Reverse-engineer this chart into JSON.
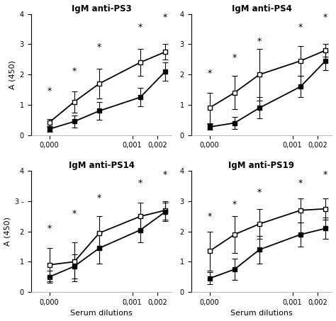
{
  "titles": [
    "IgM anti-PS3",
    "IgM anti-PS4",
    "IgM anti-PS14",
    "IgM anti-PS19"
  ],
  "x_values": [
    0.0001,
    0.0002,
    0.0004,
    0.00125,
    0.0025
  ],
  "open_square": {
    "PS3": [
      0.42,
      1.1,
      1.7,
      2.4,
      2.75
    ],
    "PS4": [
      0.9,
      1.4,
      2.0,
      2.45,
      2.8
    ],
    "PS14": [
      0.9,
      1.0,
      1.95,
      2.5,
      2.7
    ],
    "PS19": [
      1.35,
      1.9,
      2.25,
      2.7,
      2.75
    ]
  },
  "open_square_err": {
    "PS3": [
      0.12,
      0.35,
      0.5,
      0.45,
      0.25
    ],
    "PS4": [
      0.5,
      0.55,
      0.85,
      0.5,
      0.2
    ],
    "PS14": [
      0.55,
      0.65,
      0.55,
      0.45,
      0.3
    ],
    "PS19": [
      0.65,
      0.6,
      0.5,
      0.4,
      0.35
    ]
  },
  "filled_square": {
    "PS3": [
      0.2,
      0.45,
      0.8,
      1.25,
      2.1
    ],
    "PS4": [
      0.27,
      0.4,
      0.9,
      1.6,
      2.45
    ],
    "PS14": [
      0.5,
      0.85,
      1.45,
      2.05,
      2.65
    ],
    "PS19": [
      0.45,
      0.75,
      1.4,
      1.9,
      2.1
    ]
  },
  "filled_square_err": {
    "PS3": [
      0.08,
      0.2,
      0.3,
      0.3,
      0.3
    ],
    "PS4": [
      0.1,
      0.2,
      0.35,
      0.35,
      0.3
    ],
    "PS14": [
      0.2,
      0.4,
      0.5,
      0.4,
      0.3
    ],
    "PS19": [
      0.2,
      0.35,
      0.45,
      0.4,
      0.35
    ]
  },
  "star_x_idx": [
    0,
    1,
    2,
    3,
    4
  ],
  "star_y": {
    "PS3": [
      1.45,
      2.1,
      2.9,
      3.55,
      3.88
    ],
    "PS4": [
      2.05,
      2.55,
      3.1,
      3.55,
      3.88
    ],
    "PS14": [
      2.1,
      2.6,
      3.1,
      3.6,
      3.88
    ],
    "PS19": [
      2.5,
      2.9,
      3.3,
      3.6,
      3.88
    ]
  },
  "ylim": [
    0,
    4
  ],
  "yticks": [
    0,
    1,
    2,
    3,
    4
  ],
  "xtick_positions": [
    0.0001,
    0.001,
    0.002
  ],
  "xtick_labels": [
    "0,000",
    "0,001",
    "0,002"
  ],
  "xlim": [
    6e-05,
    0.003
  ],
  "xlabel": "Serum dilutions",
  "ylabel": "A (450)",
  "background_color": "#ffffff",
  "marker_size": 5,
  "capsize": 3,
  "linewidth": 1.3,
  "elinewidth": 0.8
}
